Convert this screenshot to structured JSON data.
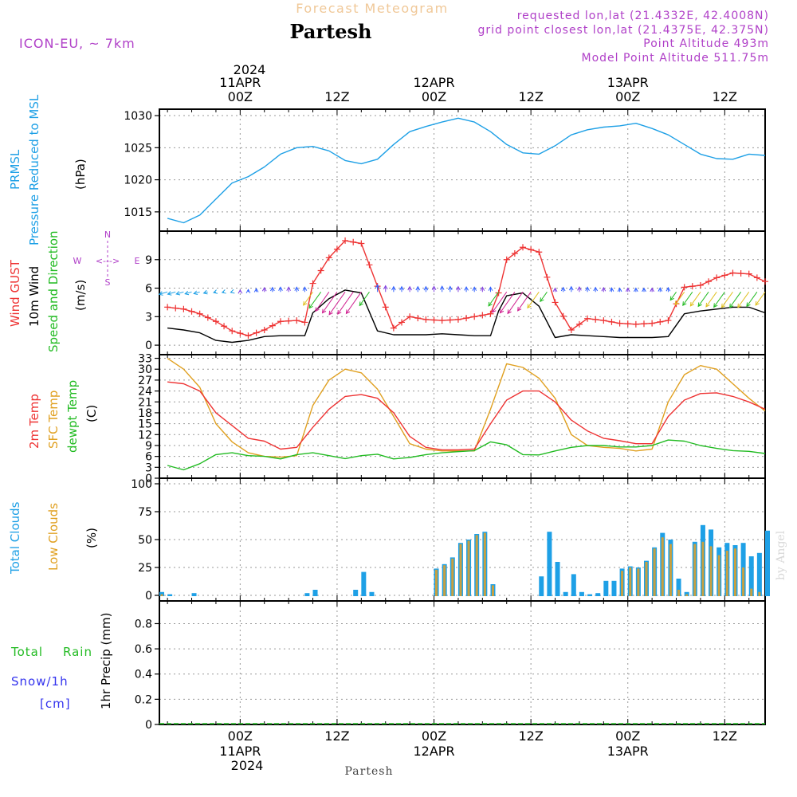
{
  "header": {
    "subtitle": "Forecast Meteogram",
    "location": "Partesh",
    "model": "ICON-EU, ~ 7km",
    "requested": "requested lon,lat (21.4332E, 42.4008N)",
    "gridpoint": "grid point closest lon,lat (21.4375E, 42.375N)",
    "point_alt": "Point Altitude 493m",
    "model_alt": "Model Point Altitude 511.75m"
  },
  "footer": {
    "location": "Partesh",
    "watermark": "by Angel"
  },
  "time_axis": {
    "top": {
      "year": "2024",
      "labels": [
        {
          "t": 0,
          "l1": "11APR",
          "l2": "00Z"
        },
        {
          "t": 12,
          "l1": "",
          "l2": "12Z"
        },
        {
          "t": 24,
          "l1": "12APR",
          "l2": "00Z"
        },
        {
          "t": 36,
          "l1": "",
          "l2": "12Z"
        },
        {
          "t": 48,
          "l1": "13APR",
          "l2": "00Z"
        },
        {
          "t": 60,
          "l1": "",
          "l2": "12Z"
        }
      ]
    },
    "bottom": {
      "year": "2024",
      "labels": [
        {
          "t": 0,
          "l1": "00Z",
          "l2": "11APR"
        },
        {
          "t": 12,
          "l1": "12Z",
          "l2": ""
        },
        {
          "t": 24,
          "l1": "00Z",
          "l2": "12APR"
        },
        {
          "t": 36,
          "l1": "12Z",
          "l2": ""
        },
        {
          "t": 48,
          "l1": "00Z",
          "l2": "13APR"
        },
        {
          "t": 60,
          "l1": "12Z",
          "l2": ""
        }
      ]
    }
  },
  "colors": {
    "pressure": "#1ea0e6",
    "gust": "#ee3333",
    "wind": "#000000",
    "dir_label": "#22bb22",
    "temp2m": "#ee3333",
    "sfc": "#e0a020",
    "dewpt": "#22bb22",
    "total_clouds": "#1ea0e6",
    "low_clouds": "#c8a040",
    "rain": "#22bb22",
    "snow": "#3333ee",
    "title": "#000000",
    "subtitle": "#f0c898",
    "purple": "#b040c8"
  },
  "panels": {
    "pressure": {
      "labels": [
        "PRMSL",
        "Pressure Reduced to MSL"
      ],
      "unit": "(hPa)",
      "ticks": [
        1015,
        1020,
        1025,
        1030
      ]
    },
    "wind": {
      "labels": [
        "Wind GUST",
        "10m Wind",
        "Speed and Direction"
      ],
      "unit": "(m/s)",
      "ticks": [
        0,
        3,
        6,
        9
      ],
      "compass": {
        "n": "N",
        "s": "S",
        "w": "W",
        "e": "E",
        "glyph": "<--->"
      }
    },
    "temp": {
      "labels": [
        "2m Temp",
        "SFC Temp",
        "dewpt Temp"
      ],
      "unit": "(C)",
      "ticks": [
        0,
        3,
        6,
        9,
        12,
        15,
        18,
        21,
        24,
        27,
        30,
        33
      ]
    },
    "clouds": {
      "labels": [
        "Total Clouds",
        "Low Clouds"
      ],
      "unit": "(%)",
      "ticks": [
        0,
        25,
        50,
        75,
        100
      ]
    },
    "precip": {
      "labels": [
        "Total",
        "Rain",
        "Snow/1h",
        "[cm]"
      ],
      "unit": "1hr Precip (mm)",
      "ticks": [
        "0",
        "0.2",
        "0.4",
        "0.6",
        "0.8"
      ]
    }
  },
  "chart_data": [
    {
      "type": "line",
      "title": "PRMSL Pressure Reduced to MSL",
      "ylabel": "(hPa)",
      "ylim": [
        1012,
        1031
      ],
      "x_hours": [
        -9,
        -7,
        -5,
        -3,
        -1,
        1,
        3,
        5,
        7,
        9,
        11,
        13,
        15,
        17,
        19,
        21,
        23,
        25,
        27,
        29,
        31,
        33,
        35,
        37,
        39,
        41,
        43,
        45,
        47,
        49,
        51,
        53,
        55,
        57,
        59,
        61,
        63,
        65
      ],
      "series": [
        {
          "values": [
            1014.0,
            1013.3,
            1014.5,
            1017.0,
            1019.5,
            1020.5,
            1022.0,
            1024.0,
            1025.0,
            1025.2,
            1024.5,
            1023.0,
            1022.5,
            1023.2,
            1025.5,
            1027.5,
            1028.3,
            1029.0,
            1029.6,
            1029.0,
            1027.5,
            1025.5,
            1024.2,
            1024.0,
            1025.3,
            1027.0,
            1027.8,
            1028.2,
            1028.4,
            1028.8,
            1028.0,
            1027.0,
            1025.5,
            1024.0,
            1023.3,
            1023.2,
            1024.0,
            1023.8
          ]
        }
      ]
    },
    {
      "type": "line",
      "title": "Wind GUST / 10m Wind Speed and Direction",
      "ylabel": "(m/s)",
      "ylim": [
        -1,
        12
      ],
      "x_hours": [
        -9,
        -7,
        -5,
        -3,
        -1,
        1,
        3,
        5,
        7,
        8,
        9,
        11,
        13,
        15,
        17,
        19,
        21,
        23,
        25,
        27,
        29,
        31,
        32,
        33,
        35,
        37,
        39,
        41,
        43,
        45,
        47,
        49,
        51,
        53,
        55,
        57,
        59,
        61,
        63,
        65
      ],
      "series": [
        {
          "name": "Wind GUST",
          "values": [
            4.0,
            3.8,
            3.3,
            2.5,
            1.5,
            1.0,
            1.6,
            2.5,
            2.6,
            2.4,
            6.5,
            9.2,
            11.0,
            10.7,
            6.2,
            1.8,
            3.0,
            2.7,
            2.6,
            2.7,
            3.0,
            3.3,
            5.5,
            9.0,
            10.3,
            9.8,
            4.5,
            1.6,
            2.8,
            2.6,
            2.3,
            2.2,
            2.3,
            2.6,
            6.1,
            6.3,
            7.1,
            7.6,
            7.5,
            6.7
          ]
        },
        {
          "name": "10m Wind",
          "values": [
            1.8,
            1.6,
            1.3,
            0.5,
            0.3,
            0.5,
            0.9,
            1.0,
            1.0,
            1.0,
            3.4,
            4.9,
            5.8,
            5.5,
            1.5,
            1.1,
            1.1,
            1.1,
            1.2,
            1.1,
            1.0,
            1.0,
            3.6,
            5.2,
            5.5,
            4.1,
            0.8,
            1.1,
            1.0,
            0.9,
            0.8,
            0.8,
            0.8,
            0.9,
            3.3,
            3.6,
            3.8,
            4.0,
            4.0,
            3.4
          ]
        }
      ]
    },
    {
      "type": "line",
      "title": "2m Temp / SFC Temp / dewpt Temp",
      "ylabel": "(C)",
      "ylim": [
        0,
        34
      ],
      "x_hours": [
        -9,
        -7,
        -5,
        -3,
        -1,
        1,
        3,
        5,
        7,
        9,
        11,
        13,
        15,
        17,
        19,
        21,
        23,
        25,
        27,
        29,
        31,
        33,
        35,
        37,
        39,
        41,
        43,
        45,
        47,
        49,
        51,
        53,
        55,
        57,
        59,
        61,
        63,
        65
      ],
      "series": [
        {
          "name": "2m Temp",
          "values": [
            26.5,
            26.0,
            24.0,
            18.0,
            14.5,
            11.0,
            10.2,
            8.0,
            8.5,
            14.0,
            19.0,
            22.5,
            23.0,
            22.0,
            18.0,
            11.5,
            8.5,
            7.8,
            7.8,
            8.0,
            15.0,
            21.5,
            24.0,
            24.0,
            21.0,
            16.0,
            13.0,
            11.0,
            10.3,
            9.5,
            9.5,
            17.0,
            21.5,
            23.3,
            23.5,
            22.5,
            21.0,
            19.0
          ]
        },
        {
          "name": "SFC Temp",
          "values": [
            33.0,
            30.0,
            25.0,
            15.0,
            10.0,
            7.0,
            6.0,
            5.8,
            6.2,
            20.0,
            27.0,
            30.0,
            29.0,
            24.5,
            17.0,
            9.5,
            8.0,
            7.5,
            7.5,
            7.5,
            19.0,
            31.5,
            30.5,
            27.5,
            22.0,
            12.0,
            9.0,
            8.5,
            8.2,
            7.5,
            8.0,
            21.0,
            28.5,
            31.0,
            30.0,
            26.0,
            22.0,
            18.5
          ]
        },
        {
          "name": "dewpt Temp",
          "values": [
            3.5,
            2.3,
            4.0,
            6.5,
            7.0,
            6.2,
            6.0,
            5.3,
            6.5,
            7.0,
            6.2,
            5.4,
            6.2,
            6.6,
            5.3,
            5.7,
            6.5,
            7.0,
            7.3,
            7.6,
            10.0,
            9.2,
            6.5,
            6.4,
            7.5,
            8.5,
            9.0,
            9.0,
            8.6,
            8.6,
            9.0,
            10.5,
            10.2,
            9.0,
            8.2,
            7.6,
            7.4,
            6.8
          ]
        }
      ]
    },
    {
      "type": "bar",
      "title": "Total Clouds / Low Clouds",
      "ylabel": "(%)",
      "ylim": [
        -5,
        105
      ],
      "x_hours": [
        -10,
        -9,
        -8,
        -7,
        -6,
        -5,
        -4,
        -3,
        -2,
        -1,
        0,
        1,
        2,
        3,
        4,
        5,
        6,
        7,
        8,
        9,
        10,
        11,
        12,
        13,
        14,
        15,
        16,
        17,
        18,
        19,
        20,
        21,
        22,
        23,
        24,
        25,
        26,
        27,
        28,
        29,
        30,
        31,
        32,
        33,
        34,
        35,
        36,
        37,
        38,
        39,
        40,
        41,
        42,
        43,
        44,
        45,
        46,
        47,
        48,
        49,
        50,
        51,
        52,
        53,
        54,
        55,
        56,
        57,
        58,
        59,
        60,
        61,
        62,
        63,
        64,
        65
      ],
      "series": [
        {
          "name": "Total Clouds",
          "values": [
            3,
            1,
            0,
            0,
            2,
            0,
            0,
            0,
            0,
            0,
            0,
            0,
            0,
            0,
            0,
            0,
            0,
            0,
            2,
            5,
            0,
            0,
            0,
            0,
            5,
            21,
            3,
            0,
            0,
            0,
            0,
            0,
            0,
            0,
            24,
            28,
            34,
            47,
            50,
            55,
            57,
            10,
            0,
            0,
            0,
            0,
            0,
            17,
            57,
            30,
            3,
            19,
            3,
            1,
            2,
            13,
            13,
            24,
            26,
            25,
            31,
            43,
            56,
            50,
            15,
            3,
            48,
            63,
            59,
            43,
            47,
            45,
            47,
            35,
            38,
            58
          ]
        },
        {
          "name": "Low Clouds",
          "values": [
            1,
            0,
            0,
            0,
            0,
            0,
            0,
            0,
            0,
            0,
            0,
            0,
            0,
            0,
            0,
            0,
            0,
            0,
            0,
            0,
            0,
            0,
            0,
            0,
            0,
            0,
            0,
            0,
            0,
            0,
            0,
            0,
            0,
            0,
            23,
            27,
            33,
            46,
            49,
            54,
            56,
            9,
            0,
            0,
            0,
            0,
            0,
            0,
            0,
            0,
            0,
            0,
            0,
            0,
            0,
            0,
            0,
            22,
            25,
            24,
            30,
            42,
            52,
            46,
            5,
            1,
            46,
            48,
            44,
            36,
            40,
            42,
            25,
            6,
            3,
            0
          ]
        }
      ]
    },
    {
      "type": "line",
      "title": "1hr Precip",
      "ylabel": "1hr Precip (mm)",
      "ylim": [
        0,
        0.98
      ],
      "x_hours": [
        -10,
        65
      ],
      "series": [
        {
          "name": "Total Rain",
          "values": [
            0,
            0
          ]
        }
      ]
    }
  ]
}
